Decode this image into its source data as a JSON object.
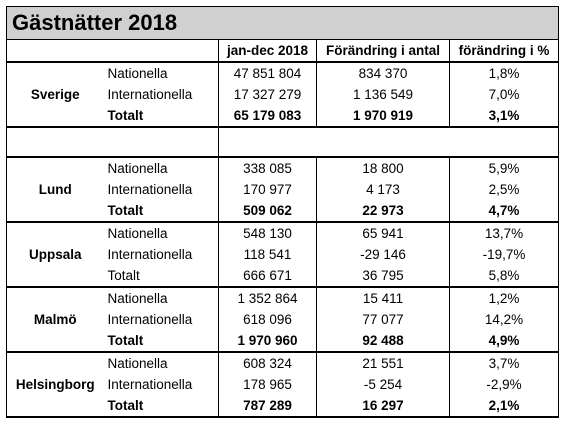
{
  "title": "Gästnätter 2018",
  "headers": [
    "jan-dec 2018",
    "Förändring i antal",
    "förändring i %"
  ],
  "groups": [
    {
      "city": "Sverige",
      "rows": [
        {
          "label": "Nationella",
          "value": "47 851 804",
          "change": "834 370",
          "pct": "1,8%",
          "bold": false
        },
        {
          "label": "Internationella",
          "value": "17 327 279",
          "change": "1 136 549",
          "pct": "7,0%",
          "bold": false
        },
        {
          "label": "Totalt",
          "value": "65 179 083",
          "change": "1 970 919",
          "pct": "3,1%",
          "bold": true
        }
      ]
    },
    {
      "city": "Lund",
      "rows": [
        {
          "label": "Nationella",
          "value": "338 085",
          "change": "18 800",
          "pct": "5,9%",
          "bold": false
        },
        {
          "label": "Internationella",
          "value": "170 977",
          "change": "4 173",
          "pct": "2,5%",
          "bold": false
        },
        {
          "label": "Totalt",
          "value": "509 062",
          "change": "22 973",
          "pct": "4,7%",
          "bold": true
        }
      ]
    },
    {
      "city": "Uppsala",
      "rows": [
        {
          "label": "Nationella",
          "value": "548 130",
          "change": "65 941",
          "pct": "13,7%",
          "bold": false
        },
        {
          "label": "Internationella",
          "value": "118 541",
          "change": "-29 146",
          "pct": "-19,7%",
          "bold": false
        },
        {
          "label": "Totalt",
          "value": "666 671",
          "change": "36 795",
          "pct": "5,8%",
          "bold": false
        }
      ]
    },
    {
      "city": "Malmö",
      "rows": [
        {
          "label": "Nationella",
          "value": "1 352 864",
          "change": "15 411",
          "pct": "1,2%",
          "bold": false
        },
        {
          "label": "Internationella",
          "value": "618 096",
          "change": "77 077",
          "pct": "14,2%",
          "bold": false
        },
        {
          "label": "Totalt",
          "value": "1 970 960",
          "change": "92 488",
          "pct": "4,9%",
          "bold": true
        }
      ]
    },
    {
      "city": "Helsingborg",
      "rows": [
        {
          "label": "Nationella",
          "value": "608 324",
          "change": "21 551",
          "pct": "3,7%",
          "bold": false
        },
        {
          "label": "Internationella",
          "value": "178 965",
          "change": "-5 254",
          "pct": "-2,9%",
          "bold": false
        },
        {
          "label": "Totalt",
          "value": "787 289",
          "change": "16 297",
          "pct": "2,1%",
          "bold": true
        }
      ]
    }
  ]
}
